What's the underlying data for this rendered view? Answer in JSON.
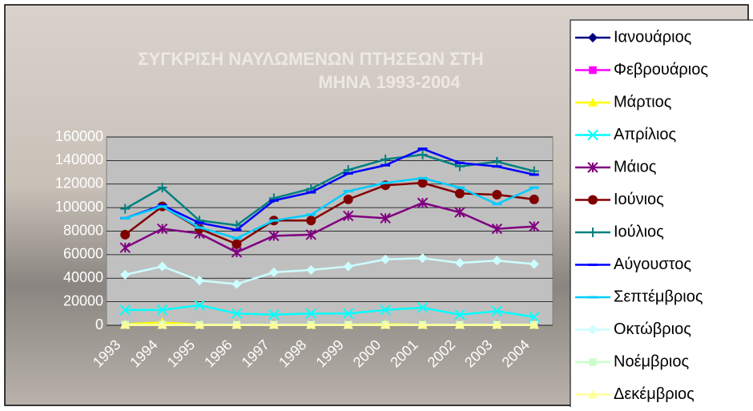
{
  "chart_data": {
    "type": "line",
    "title": [
      "ΣΥΓΚΡΙΣΗ ΝΑΥΛΩΜΕΝΩΝ ΠΤΗΣΕΩΝ ΣΤΗ",
      "ΜΗΝΑ 1993-2004"
    ],
    "categories": [
      "1993",
      "1994",
      "1995",
      "1996",
      "1997",
      "1998",
      "1999",
      "2000",
      "2001",
      "2002",
      "2003",
      "2004"
    ],
    "ylim": [
      0,
      160000
    ],
    "yticks": [
      0,
      20000,
      40000,
      60000,
      80000,
      100000,
      120000,
      140000,
      160000
    ],
    "grid": true,
    "series": [
      {
        "name": "Ιανουάριος",
        "color": "#000080",
        "marker": "diamond",
        "values": [
          500,
          500,
          500,
          500,
          500,
          500,
          500,
          500,
          500,
          500,
          500,
          500
        ]
      },
      {
        "name": "Φεβρουάριος",
        "color": "#ff00ff",
        "marker": "square",
        "values": [
          500,
          500,
          500,
          500,
          500,
          500,
          500,
          500,
          500,
          500,
          500,
          500
        ]
      },
      {
        "name": "Μάρτιος",
        "color": "#ffff00",
        "marker": "triangle",
        "values": [
          1000,
          2500,
          500,
          500,
          500,
          500,
          500,
          1000,
          500,
          500,
          500,
          500
        ]
      },
      {
        "name": "Απρίλιος",
        "color": "#00ffff",
        "marker": "x",
        "values": [
          13000,
          13000,
          17000,
          10000,
          9000,
          10000,
          10000,
          13000,
          15000,
          9000,
          12000,
          7000
        ]
      },
      {
        "name": "Μάιος",
        "color": "#800080",
        "marker": "star",
        "values": [
          66000,
          82000,
          78000,
          62000,
          76000,
          77000,
          93000,
          91000,
          104000,
          96000,
          82000,
          84000
        ]
      },
      {
        "name": "Ιούνιος",
        "color": "#800000",
        "marker": "circle",
        "values": [
          77000,
          101000,
          82000,
          69000,
          89000,
          89000,
          107000,
          119000,
          121000,
          112000,
          111000,
          107000
        ]
      },
      {
        "name": "Ιούλιος",
        "color": "#008080",
        "marker": "plus",
        "values": [
          99000,
          117000,
          89000,
          85000,
          108000,
          116000,
          132000,
          141000,
          145000,
          135000,
          139000,
          131000
        ]
      },
      {
        "name": "Αύγουστος",
        "color": "#0000ff",
        "marker": "dash",
        "values": [
          91000,
          102000,
          87000,
          81000,
          106000,
          113000,
          129000,
          136000,
          150000,
          138000,
          135000,
          128000
        ]
      },
      {
        "name": "Σεπτέμβριος",
        "color": "#00ccff",
        "marker": "dash",
        "values": [
          91000,
          101000,
          83000,
          74000,
          89000,
          94000,
          114000,
          121000,
          125000,
          117000,
          103000,
          117000
        ]
      },
      {
        "name": "Οκτώβριος",
        "color": "#ccffff",
        "marker": "diamond",
        "values": [
          43000,
          50000,
          38000,
          35000,
          45000,
          47000,
          50000,
          56000,
          57000,
          53000,
          55000,
          52000
        ]
      },
      {
        "name": "Νοέμβριος",
        "color": "#ccffcc",
        "marker": "square",
        "values": [
          500,
          500,
          500,
          500,
          500,
          500,
          500,
          500,
          500,
          500,
          500,
          500
        ]
      },
      {
        "name": "Δεκέμβριος",
        "color": "#ffff99",
        "marker": "triangle",
        "values": [
          200,
          200,
          200,
          200,
          200,
          200,
          200,
          200,
          200,
          200,
          200,
          200
        ]
      }
    ]
  }
}
